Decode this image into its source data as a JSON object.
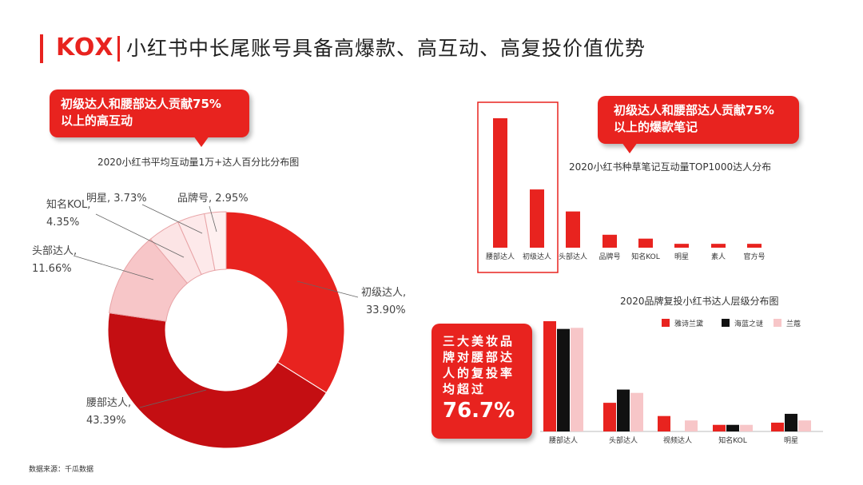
{
  "header": {
    "brand": "KOX",
    "title": "小红书中长尾账号具备高爆款、高互动、高复投价值优势"
  },
  "colors": {
    "accent": "#e8231f",
    "dark_red": "#c40e12",
    "light_pink": "#f7c6c8",
    "black": "#111111"
  },
  "callouts": {
    "left_line1": "初级达人和腰部达人贡献75%",
    "left_line2": "以上的高互动",
    "right_line1": "初级达人和腰部达人贡献75%",
    "right_line2": "以上的爆款笔记",
    "bottom_lines": [
      "三大美妆品",
      "牌对腰部达",
      "人的复投率",
      "均超过"
    ],
    "bottom_big": "76.7%"
  },
  "footer": "数据来源：千瓜数据",
  "chart_data": [
    {
      "type": "pie",
      "title": "2020小红书平均互动量1万+达人百分比分布图",
      "slices": [
        {
          "label": "初级达人",
          "value": 33.9,
          "display": "33.90%",
          "color": "#e8231f"
        },
        {
          "label": "腰部达人",
          "value": 43.39,
          "display": "43.39%",
          "color": "#c40e12"
        },
        {
          "label": "头部达人",
          "value": 11.66,
          "display": "11.66%",
          "color": "#f7c6c8"
        },
        {
          "label": "知名KOL",
          "value": 4.35,
          "display": "4.35%",
          "color": "#fce4e5"
        },
        {
          "label": "明星",
          "value": 3.73,
          "display": "3.73%",
          "color": "#fde9ea"
        },
        {
          "label": "品牌号",
          "value": 2.95,
          "display": "2.95%",
          "color": "#fef0f0"
        }
      ],
      "donut": true
    },
    {
      "type": "bar",
      "title": "2020小红书种草笔记互动量TOP1000达人分布",
      "categories": [
        "腰部达人",
        "初级达人",
        "头部达人",
        "品牌号",
        "知名KOL",
        "明星",
        "素人",
        "官方号"
      ],
      "values": [
        100,
        45,
        28,
        10,
        7,
        3,
        3,
        3
      ],
      "color": "#e8231f",
      "highlight": [
        "腰部达人",
        "初级达人"
      ]
    },
    {
      "type": "bar",
      "title": "2020品牌复投小红书达人层级分布图",
      "categories": [
        "腰部达人",
        "头部达人",
        "视频达人",
        "知名KOL",
        "明星"
      ],
      "series": [
        {
          "name": "雅诗兰黛",
          "color": "#e8231f",
          "values": [
            100,
            26,
            14,
            6,
            8
          ]
        },
        {
          "name": "海蓝之谜",
          "color": "#111111",
          "values": [
            93,
            38,
            0,
            6,
            16
          ]
        },
        {
          "name": "兰蔻",
          "color": "#f7c6c8",
          "values": [
            94,
            35,
            10,
            6,
            10
          ]
        }
      ],
      "legend": "top-right"
    }
  ]
}
